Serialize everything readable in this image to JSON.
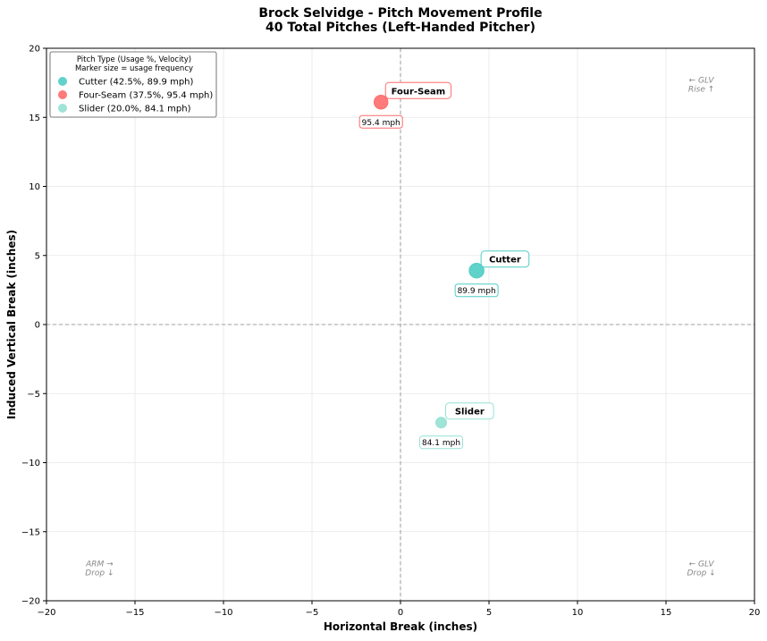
{
  "chart_data": {
    "type": "scatter",
    "title": "Brock Selvidge - Pitch Movement Profile",
    "subtitle": "40 Total Pitches (Left-Handed Pitcher)",
    "xlabel": "Horizontal Break (inches)",
    "ylabel": "Induced Vertical Break (inches)",
    "xlim": [
      -20,
      20
    ],
    "ylim": [
      -20,
      20
    ],
    "xticks": [
      -20,
      -15,
      -10,
      -5,
      0,
      5,
      10,
      15,
      20
    ],
    "yticks": [
      -20,
      -15,
      -10,
      -5,
      0,
      5,
      10,
      15,
      20
    ],
    "grid": true,
    "legend": {
      "placement": "top-left",
      "title_lines": [
        "Pitch Type (Usage %, Velocity)",
        "Marker size = usage frequency"
      ]
    },
    "series": [
      {
        "name": "Cutter",
        "legend_label": "Cutter (42.5%, 89.9 mph)",
        "x": 4.3,
        "y": 3.9,
        "usage": 42.5,
        "velocity_label": "89.9 mph",
        "color": "#4ECDC4",
        "opacity": 0.9
      },
      {
        "name": "Four-Seam",
        "legend_label": "Four-Seam (37.5%, 95.4 mph)",
        "x": -1.1,
        "y": 16.1,
        "usage": 37.5,
        "velocity_label": "95.4 mph",
        "color": "#FF6B6B",
        "opacity": 0.9
      },
      {
        "name": "Slider",
        "legend_label": "Slider (20.0%, 84.1 mph)",
        "x": 2.3,
        "y": -7.1,
        "usage": 20.0,
        "velocity_label": "84.1 mph",
        "color": "#95E1D3",
        "opacity": 0.9
      }
    ],
    "annotations": [
      {
        "lines": [
          "← GLV",
          "Rise ↑"
        ],
        "x": 17,
        "y": 17.5
      },
      {
        "lines": [
          "ARM →",
          "Drop ↓"
        ],
        "x": -17,
        "y": -17.5
      },
      {
        "lines": [
          "← GLV",
          "Drop ↓"
        ],
        "x": 17,
        "y": -17.5
      }
    ]
  }
}
